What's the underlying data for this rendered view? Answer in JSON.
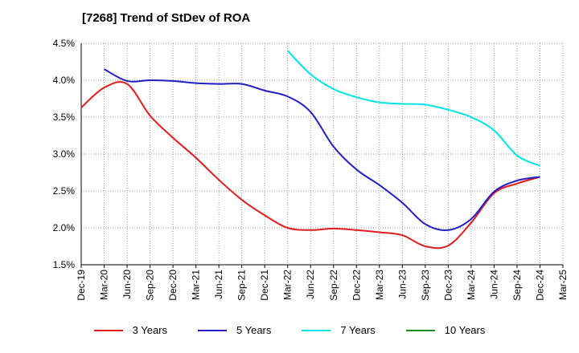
{
  "chart_data": {
    "type": "line",
    "title": "[7268]  Trend of StDev of ROA",
    "xlabel": "",
    "ylabel": "",
    "x_ticks": [
      "Dec-19",
      "Mar-20",
      "Jun-20",
      "Sep-20",
      "Dec-20",
      "Mar-21",
      "Jun-21",
      "Sep-21",
      "Dec-21",
      "Mar-22",
      "Jun-22",
      "Sep-22",
      "Dec-22",
      "Mar-23",
      "Jun-23",
      "Sep-23",
      "Dec-23",
      "Mar-24",
      "Jun-24",
      "Sep-24",
      "Dec-24",
      "Mar-25"
    ],
    "y_ticks": [
      "1.5%",
      "2.0%",
      "2.5%",
      "3.0%",
      "3.5%",
      "4.0%",
      "4.5%"
    ],
    "ylim": [
      1.5,
      4.5
    ],
    "grid": true,
    "legend_position": "bottom",
    "series": [
      {
        "name": "3 Years",
        "color": "#e41a1c",
        "x": [
          "Dec-19",
          "Mar-20",
          "Jun-20",
          "Sep-20",
          "Dec-20",
          "Mar-21",
          "Jun-21",
          "Sep-21",
          "Dec-21",
          "Mar-22",
          "Jun-22",
          "Sep-22",
          "Dec-22",
          "Mar-23",
          "Jun-23",
          "Sep-23",
          "Dec-23",
          "Mar-24",
          "Jun-24",
          "Sep-24",
          "Dec-24"
        ],
        "values": [
          3.63,
          3.9,
          3.95,
          3.52,
          3.22,
          2.95,
          2.65,
          2.38,
          2.17,
          2.0,
          1.97,
          1.99,
          1.97,
          1.94,
          1.9,
          1.75,
          1.76,
          2.07,
          2.47,
          2.6,
          2.69
        ]
      },
      {
        "name": "5 Years",
        "color": "#1f1fc8",
        "x": [
          "Mar-20",
          "Jun-20",
          "Sep-20",
          "Dec-20",
          "Mar-21",
          "Jun-21",
          "Sep-21",
          "Dec-21",
          "Mar-22",
          "Jun-22",
          "Sep-22",
          "Dec-22",
          "Mar-23",
          "Jun-23",
          "Sep-23",
          "Dec-23",
          "Mar-24",
          "Jun-24",
          "Sep-24",
          "Dec-24"
        ],
        "values": [
          4.15,
          3.99,
          4.0,
          3.99,
          3.96,
          3.95,
          3.95,
          3.86,
          3.78,
          3.57,
          3.1,
          2.79,
          2.58,
          2.34,
          2.05,
          1.97,
          2.12,
          2.49,
          2.64,
          2.69
        ]
      },
      {
        "name": "7 Years",
        "color": "#00e5e5",
        "x": [
          "Mar-22",
          "Jun-22",
          "Sep-22",
          "Dec-22",
          "Mar-23",
          "Jun-23",
          "Sep-23",
          "Dec-23",
          "Mar-24",
          "Jun-24",
          "Sep-24",
          "Dec-24"
        ],
        "values": [
          4.4,
          4.08,
          3.88,
          3.77,
          3.7,
          3.68,
          3.67,
          3.6,
          3.5,
          3.32,
          2.98,
          2.84
        ]
      },
      {
        "name": "10 Years",
        "color": "#228b22",
        "x": [],
        "values": []
      }
    ]
  }
}
